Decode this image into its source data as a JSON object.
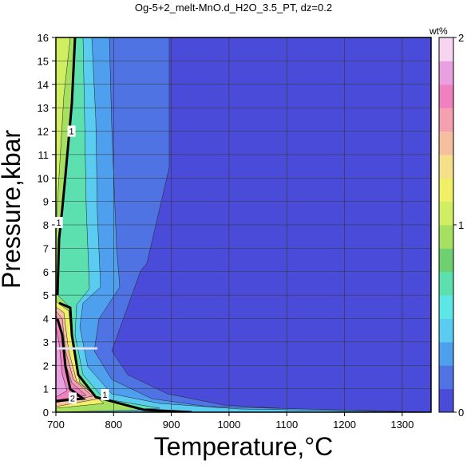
{
  "chart_data": {
    "type": "heatmap",
    "title": "Og-5+2_melt-MnO.d_H2O_3.5_PT, dz=0.2",
    "xlabel": "Temperature,°C",
    "ylabel": "Pressure,kbar",
    "xlim": [
      700,
      1350
    ],
    "ylim": [
      0,
      16
    ],
    "x_ticks": [
      "700",
      "800",
      "900",
      "1000",
      "1100",
      "1200",
      "1300"
    ],
    "y_ticks": [
      "0",
      "1",
      "2",
      "3",
      "4",
      "5",
      "6",
      "7",
      "8",
      "9",
      "10",
      "11",
      "12",
      "13",
      "14",
      "15",
      "16"
    ],
    "grid": true,
    "colorbar": {
      "label": "wt%",
      "range": [
        0,
        2
      ],
      "ticks": [
        "0",
        "1",
        "2"
      ],
      "colors": [
        "#4b4bd9",
        "#4f73e3",
        "#4f9fef",
        "#59ccf0",
        "#5ce6e6",
        "#5ce0b0",
        "#6ed070",
        "#a5e060",
        "#cfee62",
        "#f0f066",
        "#f5e08a",
        "#f5c0a0",
        "#f4a0b0",
        "#f080c0",
        "#e8a0e0",
        "#f5d5f0"
      ]
    },
    "contour_labels": [
      {
        "text": "1",
        "temperature": 727,
        "pressure": 12.0
      },
      {
        "text": "1",
        "temperature": 705,
        "pressure": 8.1
      },
      {
        "text": "2",
        "temperature": 729,
        "pressure": 0.6
      },
      {
        "text": "1",
        "temperature": 785,
        "pressure": 0.75
      }
    ]
  }
}
